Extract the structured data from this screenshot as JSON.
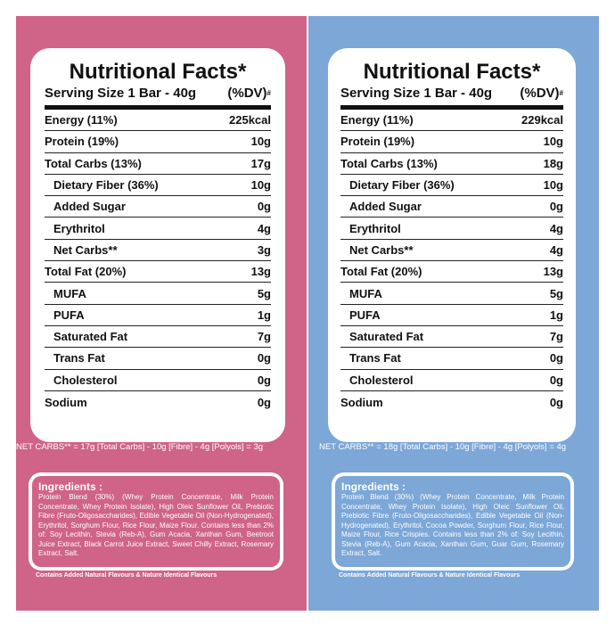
{
  "colors": {
    "left_panel": "#cf6388",
    "right_panel": "#7ca7d7"
  },
  "panels": [
    {
      "title": "Nutritional Facts*",
      "serving": "Serving Size 1 Bar - 40g",
      "dv": "(%DV)",
      "dv_mark": "#",
      "rows": [
        {
          "label": "Energy (11%)",
          "value": "225kcal"
        },
        {
          "label": "Protein (19%)",
          "value": "10g"
        },
        {
          "label": "Total Carbs (13%)",
          "value": "17g"
        },
        {
          "label": "Dietary Fiber (36%)",
          "value": "10g"
        },
        {
          "label": "Added Sugar",
          "value": "0g"
        },
        {
          "label": "Erythritol",
          "value": "4g"
        },
        {
          "label": "Net Carbs**",
          "value": "3g"
        },
        {
          "label": "Total Fat (20%)",
          "value": "13g"
        },
        {
          "label": "MUFA",
          "value": "5g"
        },
        {
          "label": "PUFA",
          "value": "1g"
        },
        {
          "label": "Saturated Fat",
          "value": "7g"
        },
        {
          "label": "Trans Fat",
          "value": "0g"
        },
        {
          "label": "Cholesterol",
          "value": "0g"
        },
        {
          "label": "Sodium",
          "value": "0g"
        }
      ],
      "net_carbs_note": "NET CARBS** = 17g [Total Carbs] - 10g [Fibre] - 4g [Polyols] = 3g",
      "ingredients_heading": "Ingredients :",
      "ingredients_text": "Protein Blend (30%) (Whey Protein Concentrate, Milk Protein Concentrate, Whey Protein Isolate), High Oleic Sunflower Oil, Prebiotic Fibre (Fruto-Oligosaccharides), Edible Vegetable Oil (Non-Hydrogenated), Erythritol, Sorghum Flour, Rice Flour, Maize Flour. Contains less than 2% of: Soy Lecithin, Stevia (Reb-A), Gum Acacia, Xanthan Gum, Beetroot Juice Extract, Black Carrot Juice Extract, Sweet Chilly Extract, Rosemary Extract, Salt.",
      "footer": "Contains Added Natural Flavours & Nature Identical Flavours"
    },
    {
      "title": "Nutritional Facts*",
      "serving": "Serving Size 1 Bar - 40g",
      "dv": "(%DV)",
      "dv_mark": "#",
      "rows": [
        {
          "label": "Energy (11%)",
          "value": "229kcal"
        },
        {
          "label": "Protein (19%)",
          "value": "10g"
        },
        {
          "label": "Total Carbs (13%)",
          "value": "18g"
        },
        {
          "label": "Dietary Fiber (36%)",
          "value": "10g"
        },
        {
          "label": "Added Sugar",
          "value": "0g"
        },
        {
          "label": "Erythritol",
          "value": "4g"
        },
        {
          "label": "Net Carbs**",
          "value": "4g"
        },
        {
          "label": "Total Fat (20%)",
          "value": "13g"
        },
        {
          "label": "MUFA",
          "value": "5g"
        },
        {
          "label": "PUFA",
          "value": "1g"
        },
        {
          "label": "Saturated Fat",
          "value": "7g"
        },
        {
          "label": "Trans Fat",
          "value": "0g"
        },
        {
          "label": "Cholesterol",
          "value": "0g"
        },
        {
          "label": "Sodium",
          "value": "0g"
        }
      ],
      "net_carbs_note": "NET CARBS** = 18g [Total Carbs] - 10g [Fibre] - 4g [Polyols] = 4g",
      "ingredients_heading": "Ingredients :",
      "ingredients_text": "Protein Blend (30%) (Whey Protein Concentrate, Milk Protein Concentrate, Whey Protein Isolate), High Oleic Sunflower Oil, Prebiotic Fibre (Fruto-Oligosaccharides), Edible Vegetable Oil (Non-Hydrogenated), Erythritol, Cocoa Powder, Sorghum Flour, Rice Flour, Maize Flour, Rice Crispies. Contains less than 2% of: Soy Lecithin, Stevia (Reb-A), Gum Acacia, Xanthan Gum, Guar Gum, Rosemary Extract, Salt.",
      "footer": "Contains Added Natural Flavours & Nature Identical Flavours"
    }
  ]
}
